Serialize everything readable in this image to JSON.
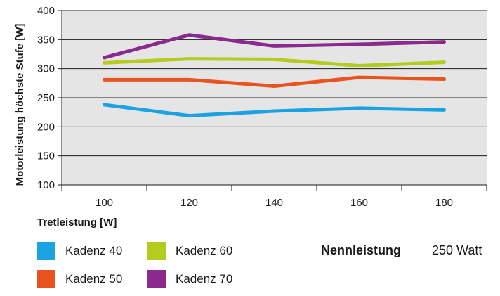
{
  "chart_data": {
    "type": "line",
    "x": [
      100,
      120,
      140,
      160,
      180
    ],
    "xlabel": "Tretleistung [W]",
    "ylabel": "Motorleistung höchste Stufe [W]",
    "ylim": [
      100,
      400
    ],
    "yticks": [
      100,
      150,
      200,
      250,
      300,
      350,
      400
    ],
    "xtick_labels": [
      "100",
      "120",
      "140",
      "160",
      "180"
    ],
    "grid": true,
    "series": [
      {
        "name": "Kadenz 40",
        "color": "#1aa3e0",
        "values": [
          238,
          219,
          227,
          232,
          229
        ]
      },
      {
        "name": "Kadenz 50",
        "color": "#e8531f",
        "values": [
          281,
          281,
          270,
          285,
          282
        ]
      },
      {
        "name": "Kadenz 60",
        "color": "#b4cc1e",
        "values": [
          310,
          317,
          316,
          305,
          311
        ]
      },
      {
        "name": "Kadenz 70",
        "color": "#8b2a8e",
        "values": [
          319,
          358,
          339,
          342,
          346
        ]
      }
    ],
    "legend_position": "bottom"
  },
  "rated_power": {
    "label": "Nennleistung",
    "value": "250 Watt"
  }
}
